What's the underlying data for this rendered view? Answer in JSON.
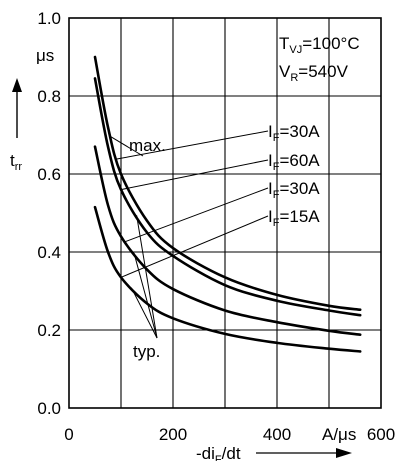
{
  "chart_data": {
    "type": "line",
    "title": "",
    "xlabel": "-diF/dt",
    "ylabel": "trr",
    "x_unit": "A/μs",
    "y_unit": "μs",
    "xlim": [
      0,
      600
    ],
    "ylim": [
      0,
      1.0
    ],
    "grid": true,
    "x_ticks": [
      {
        "value": 0,
        "label": "0"
      },
      {
        "value": 200,
        "label": "200"
      },
      {
        "value": 400,
        "label": "400"
      },
      {
        "value": 600,
        "label": "600"
      }
    ],
    "y_ticks": [
      {
        "value": 0,
        "label": "0.0"
      },
      {
        "value": 0.2,
        "label": "0.2"
      },
      {
        "value": 0.4,
        "label": "0.4"
      },
      {
        "value": 0.6,
        "label": "0.6"
      },
      {
        "value": 0.8,
        "label": "0.8"
      },
      {
        "value": 1.0,
        "label": "1.0"
      }
    ],
    "conditions": {
      "tvj_label": "T",
      "tvj_sub": "VJ",
      "tvj_value": "=100°C",
      "vr_label": "V",
      "vr_sub": "R",
      "vr_value": "=540V"
    },
    "curve_group_labels": {
      "max": "max.",
      "typ": "typ."
    },
    "series": [
      {
        "name": "max. IF=30A",
        "legend": {
          "prefix": "I",
          "sub": "F",
          "suffix": "=30A"
        },
        "x": [
          50,
          75,
          100,
          150,
          200,
          300,
          400,
          500,
          560
        ],
        "y": [
          0.9,
          0.72,
          0.6,
          0.48,
          0.41,
          0.335,
          0.29,
          0.262,
          0.252
        ]
      },
      {
        "name": "typ. IF=60A",
        "legend": {
          "prefix": "I",
          "sub": "F",
          "suffix": "=60A"
        },
        "x": [
          50,
          75,
          100,
          150,
          200,
          300,
          400,
          500,
          560
        ],
        "y": [
          0.845,
          0.67,
          0.56,
          0.45,
          0.39,
          0.315,
          0.275,
          0.25,
          0.238
        ]
      },
      {
        "name": "typ. IF=30A",
        "legend": {
          "prefix": "I",
          "sub": "F",
          "suffix": "=30A"
        },
        "x": [
          50,
          75,
          100,
          150,
          200,
          300,
          400,
          500,
          560
        ],
        "y": [
          0.67,
          0.52,
          0.44,
          0.355,
          0.305,
          0.25,
          0.22,
          0.198,
          0.188
        ]
      },
      {
        "name": "typ. IF=15A",
        "legend": {
          "prefix": "I",
          "sub": "F",
          "suffix": "=15A"
        },
        "x": [
          50,
          75,
          100,
          150,
          200,
          300,
          400,
          500,
          560
        ],
        "y": [
          0.515,
          0.4,
          0.335,
          0.268,
          0.23,
          0.19,
          0.167,
          0.152,
          0.145
        ]
      }
    ]
  }
}
